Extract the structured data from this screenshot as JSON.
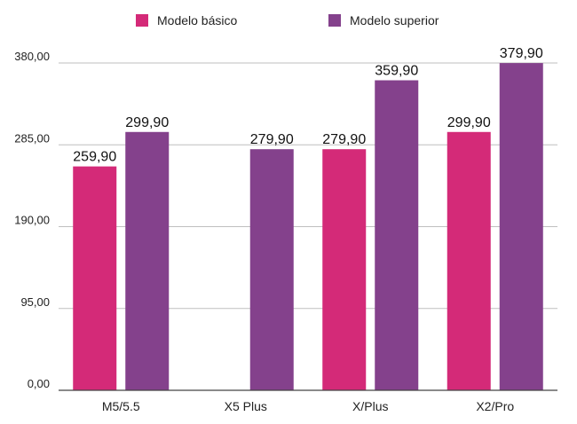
{
  "chart_data": {
    "type": "bar",
    "categories": [
      "M5/5.5",
      "X5 Plus",
      "X/Plus",
      "X2/Pro"
    ],
    "series": [
      {
        "name": "Modelo básico",
        "color": "#d42a78",
        "values": [
          259.9,
          null,
          279.9,
          299.9
        ],
        "labels": [
          "259,90",
          "",
          "279,90",
          "299,90"
        ]
      },
      {
        "name": "Modelo superior",
        "color": "#84418c",
        "values": [
          299.9,
          279.9,
          359.9,
          379.9
        ],
        "labels": [
          "299,90",
          "279,90",
          "359,90",
          "379,90"
        ]
      }
    ],
    "yticks": [
      0,
      95,
      190,
      285,
      380
    ],
    "ytick_labels": [
      "0,00",
      "95,00",
      "190,00",
      "285,00",
      "380,00"
    ],
    "ylim": [
      0,
      380
    ],
    "grid": true,
    "legend_position": "top"
  }
}
